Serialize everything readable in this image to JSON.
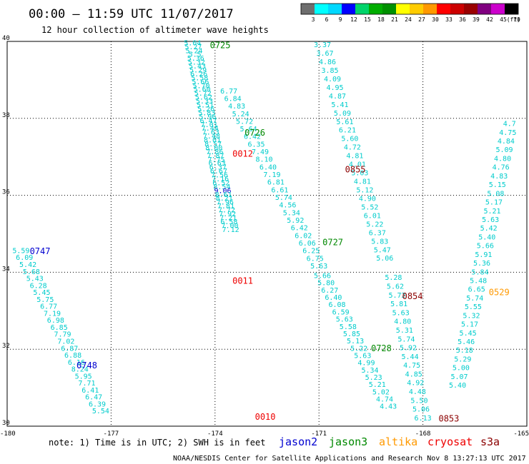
{
  "title": "00:00 – 11:59 UTC 11/07/2017",
  "subtitle": "12 hour collection of altimeter wave heights",
  "note": "note: 1) Time is in UTC; 2) SWH is in feet",
  "credit": "NOAA/NESDIS Center for Satellite Applications and Research   Nov  8 13:27:13 UTC 2017",
  "satellites": [
    {
      "name": "jason2",
      "color": "#0000d0"
    },
    {
      "name": "jason3",
      "color": "#008800"
    },
    {
      "name": "altika",
      "color": "#ff9900"
    },
    {
      "name": "cryosat",
      "color": "#ee0000"
    },
    {
      "name": "s3a",
      "color": "#8b0000"
    }
  ],
  "legend": {
    "unit": "(ft)",
    "labels": [
      "3",
      "6",
      "9",
      "12",
      "15",
      "18",
      "21",
      "24",
      "27",
      "30",
      "33",
      "36",
      "39",
      "42",
      "45",
      "70"
    ],
    "colors": [
      "#6e6e6e",
      "#00ffff",
      "#00d8ff",
      "#0000ff",
      "#00d46a",
      "#00ad00",
      "#009000",
      "#ffff00",
      "#ffcc00",
      "#ff9900",
      "#ff0000",
      "#cc0000",
      "#990000",
      "#800080",
      "#cc00cc",
      "#000000"
    ]
  },
  "chart_data": {
    "type": "scatter",
    "xlim": [
      -180,
      -165
    ],
    "ylim": [
      30,
      40
    ],
    "x_ticks": [
      "-180",
      "-177",
      "-174",
      "-171",
      "-168",
      "-165"
    ],
    "y_ticks": [
      "30",
      "32",
      "34",
      "36",
      "38",
      "40"
    ],
    "grid": true,
    "tracks": [
      {
        "satellite": "jason2",
        "time": "0747",
        "color": "#0000d0",
        "start": [
          -179.6,
          34.5
        ],
        "end": [
          -177.3,
          30.33
        ],
        "values": [
          "5.59",
          "6.09",
          "5.42",
          "5.68",
          "5.43",
          "6.28",
          "5.45",
          "5.75",
          "6.77",
          "7.19",
          "6.98",
          "6.85",
          "7.79",
          "7.02",
          "6.87",
          "6.88",
          "6.16",
          "8.24",
          "5.95",
          "7.71",
          "6.41",
          "6.47",
          "6.39",
          "5.54"
        ]
      },
      {
        "satellite": "jason2",
        "time": "0748",
        "color": "#0000d0",
        "start": null,
        "end": null,
        "values": []
      },
      {
        "satellite": "jason3",
        "time": "0725",
        "color": "#008800",
        "start": [
          -174.65,
          39.9
        ],
        "end": [
          -173.55,
          35.05
        ],
        "values": [
          "5.04",
          "5.27",
          "5.24",
          "5.5",
          "5.36",
          "5.32",
          "5.43",
          "5.29",
          "6.26",
          "5.58",
          "5.66",
          "5.70",
          "5.60",
          "5.72",
          "5.62",
          "5.33",
          "5.51",
          "5.26",
          "5.83",
          "5.96",
          "6.47",
          "7.01",
          "7.44",
          "7.63",
          "7.48",
          "8.01",
          "8.57",
          "8.00",
          "7.86",
          "7.87",
          "7.75",
          "6.63",
          "6.37",
          "6.67",
          "7.56",
          "7.16",
          "6.52",
          "8.54",
          "9.06",
          "8.61",
          "8.21",
          "7.96",
          "7.81",
          "7.72",
          "7.92",
          "7.21",
          "6.58",
          "7.00",
          "7.12"
        ]
      },
      {
        "satellite": "jason3",
        "time": "0726",
        "color": "#008800",
        "start": [
          -173.6,
          38.65
        ],
        "end": [
          -171.0,
          34.1
        ],
        "values": [
          "6.77",
          "6.84",
          "4.83",
          "5.24",
          "5.72",
          "5.64",
          "6.42",
          "6.35",
          "7.49",
          "8.10",
          "6.40",
          "7.19",
          "6.81",
          "6.61",
          "5.74",
          "4.56",
          "5.34",
          "5.92",
          "6.42",
          "6.02",
          "6.06",
          "6.25",
          "6.75",
          "5.63"
        ]
      },
      {
        "satellite": "jason3",
        "time": "0727",
        "color": "#008800",
        "start": [
          -170.9,
          33.85
        ],
        "end": [
          -169.0,
          30.45
        ],
        "values": [
          "5.66",
          "5.80",
          "6.27",
          "6.40",
          "6.08",
          "6.59",
          "5.63",
          "5.58",
          "5.85",
          "5.13",
          "5.22",
          "5.63",
          "4.99",
          "5.34",
          "5.23",
          "5.21",
          "5.02",
          "4.74",
          "4.43"
        ]
      },
      {
        "satellite": "jason3",
        "time": "0728",
        "color": "#008800",
        "start": null,
        "end": null,
        "values": []
      },
      {
        "satellite": "altika",
        "time": "0529",
        "color": "#ff9900",
        "start": [
          -165.5,
          37.8
        ],
        "end": [
          -167.0,
          31.0
        ],
        "values": [
          "4.7",
          "4.75",
          "4.84",
          "5.09",
          "4.80",
          "4.76",
          "4.83",
          "5.15",
          "5.08",
          "5.17",
          "5.21",
          "5.63",
          "5.42",
          "5.40",
          "5.66",
          "5.91",
          "5.36",
          "5.84",
          "5.48",
          "6.65",
          "5.74",
          "5.55",
          "5.32",
          "5.17",
          "5.45",
          "5.46",
          "5.18",
          "5.29",
          "5.00",
          "5.07",
          "5.40"
        ]
      },
      {
        "satellite": "cryosat",
        "time": "0012",
        "color": "#ee0000",
        "start": null,
        "end": null,
        "values": []
      },
      {
        "satellite": "cryosat",
        "time": "0011",
        "color": "#ee0000",
        "start": null,
        "end": null,
        "values": []
      },
      {
        "satellite": "cryosat",
        "time": "0010",
        "color": "#ee0000",
        "start": null,
        "end": null,
        "values": []
      },
      {
        "satellite": "s3a",
        "time": "0855",
        "color": "#8b0000",
        "start": [
          -170.9,
          39.85
        ],
        "end": [
          -169.1,
          34.3
        ],
        "values": [
          "3.37",
          "3.67",
          "4.86",
          "3.85",
          "4.09",
          "4.95",
          "4.87",
          "5.41",
          "5.09",
          "5.61",
          "6.21",
          "5.60",
          "4.72",
          "4.81",
          "4.01",
          "5.03",
          "4.81",
          "5.12",
          "4.90",
          "5.52",
          "6.01",
          "5.22",
          "6.37",
          "5.83",
          "5.47",
          "5.06"
        ]
      },
      {
        "satellite": "s3a",
        "time": "0854",
        "color": "#8b0000",
        "start": [
          -168.85,
          33.8
        ],
        "end": [
          -168.0,
          30.15
        ],
        "values": [
          "5.28",
          "5.62",
          "5.72",
          "5.81",
          "5.63",
          "4.80",
          "5.31",
          "5.74",
          "5.92",
          "5.44",
          "4.75",
          "4.85",
          "4.92",
          "4.48",
          "5.50",
          "5.06",
          "6.13"
        ]
      },
      {
        "satellite": "s3a",
        "time": "0853",
        "color": "#8b0000",
        "start": null,
        "end": null,
        "values": []
      }
    ],
    "labels": [
      {
        "text": "0725",
        "color": "#008800",
        "x": -173.85,
        "y": 39.82
      },
      {
        "text": "0726",
        "color": "#008800",
        "x": -172.85,
        "y": 37.55
      },
      {
        "text": "0012",
        "color": "#ee0000",
        "x": -173.2,
        "y": 37.0
      },
      {
        "text": "0855",
        "color": "#8b0000",
        "x": -169.95,
        "y": 36.6
      },
      {
        "text": "0727",
        "color": "#008800",
        "x": -170.6,
        "y": 34.7
      },
      {
        "text": "0747",
        "color": "#0000d0",
        "x": -179.05,
        "y": 34.47
      },
      {
        "text": "0011",
        "color": "#ee0000",
        "x": -173.2,
        "y": 33.7
      },
      {
        "text": "0854",
        "color": "#8b0000",
        "x": -168.3,
        "y": 33.3
      },
      {
        "text": "0529",
        "color": "#ff9900",
        "x": -165.8,
        "y": 33.4
      },
      {
        "text": "0748",
        "color": "#0000d0",
        "x": -177.7,
        "y": 31.5
      },
      {
        "text": "0728",
        "color": "#008800",
        "x": -169.2,
        "y": 31.95
      },
      {
        "text": "0010",
        "color": "#ee0000",
        "x": -172.55,
        "y": 30.17
      },
      {
        "text": "0853",
        "color": "#8b0000",
        "x": -167.25,
        "y": 30.12
      }
    ]
  }
}
